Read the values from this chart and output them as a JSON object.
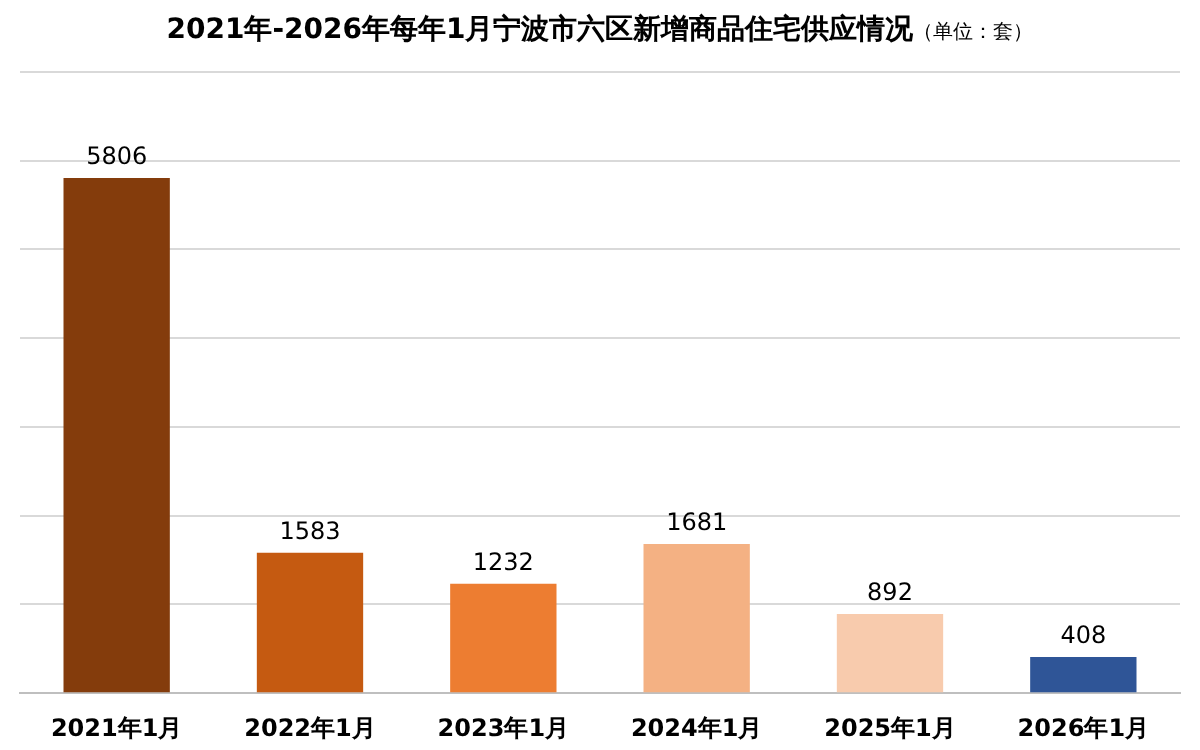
{
  "chart_data": {
    "type": "bar",
    "title": "2021年-2026年每年1月宁波市六区新增商品住宅供应情况",
    "subtitle": "（单位：套）",
    "categories": [
      "2021年1月",
      "2022年1月",
      "2023年1月",
      "2024年1月",
      "2025年1月",
      "2026年1月"
    ],
    "values": [
      5806,
      1583,
      1232,
      1681,
      892,
      408
    ],
    "colors": [
      "#843c0c",
      "#c55a11",
      "#ed7d31",
      "#f4b183",
      "#f8cbad",
      "#2f5597"
    ],
    "ylim": [
      0,
      7000
    ],
    "yticks": [
      {
        "value": 0,
        "label": null
      },
      {
        "value": 1000,
        "label": null
      },
      {
        "value": 2000,
        "label": null
      },
      {
        "value": 3000,
        "label": null
      },
      {
        "value": 4000,
        "label": null
      },
      {
        "value": 5000,
        "label": null
      },
      {
        "value": 6000,
        "label": null
      },
      {
        "value": 7000,
        "label": null
      }
    ],
    "tick_labels": "x",
    "grid": "y",
    "data_labels": true,
    "legend": false
  }
}
